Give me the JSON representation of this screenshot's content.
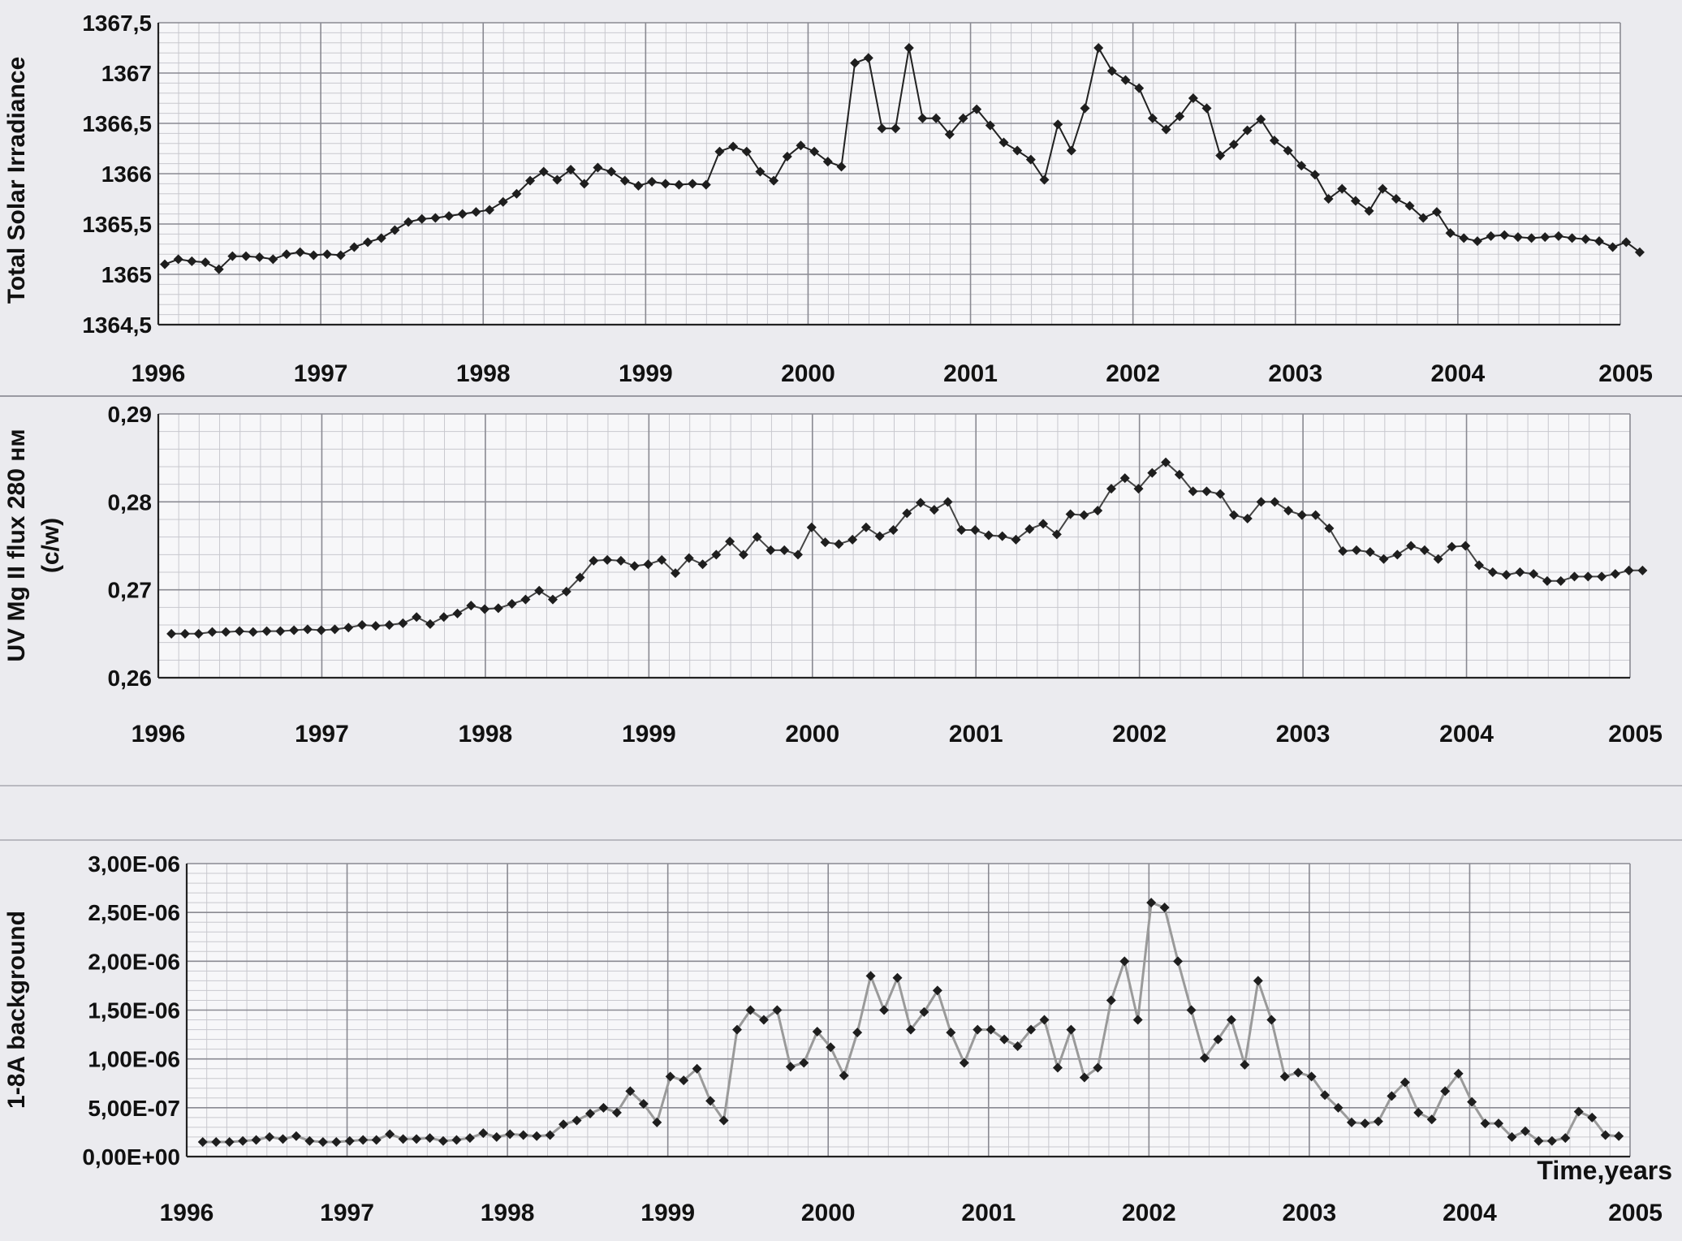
{
  "chart_data": [
    {
      "type": "line",
      "ylabel": "Total Solar Irradiance",
      "xlabel": "",
      "xlim": [
        1996,
        2005
      ],
      "ylim": [
        1364.5,
        1367.5
      ],
      "x_ticks": [
        "1996",
        "1997",
        "1998",
        "1999",
        "2000",
        "2001",
        "2002",
        "2003",
        "2004",
        "2005"
      ],
      "y_ticks": [
        "1364,5",
        "1365",
        "1365,5",
        "1366",
        "1366,5",
        "1367",
        "1367,5"
      ],
      "grid": true,
      "line_color": "#222222",
      "x_start": 1996.04,
      "x_step": 0.0833,
      "values": [
        1365.1,
        1365.15,
        1365.13,
        1365.12,
        1365.05,
        1365.18,
        1365.18,
        1365.17,
        1365.15,
        1365.2,
        1365.22,
        1365.19,
        1365.2,
        1365.19,
        1365.27,
        1365.32,
        1365.36,
        1365.44,
        1365.52,
        1365.55,
        1365.56,
        1365.58,
        1365.6,
        1365.62,
        1365.64,
        1365.72,
        1365.8,
        1365.93,
        1366.02,
        1365.94,
        1366.04,
        1365.9,
        1366.06,
        1366.02,
        1365.93,
        1365.88,
        1365.92,
        1365.9,
        1365.89,
        1365.9,
        1365.89,
        1366.22,
        1366.27,
        1366.22,
        1366.02,
        1365.93,
        1366.17,
        1366.28,
        1366.22,
        1366.12,
        1366.07,
        1367.1,
        1367.15,
        1366.45,
        1366.45,
        1367.25,
        1366.55,
        1366.55,
        1366.39,
        1366.55,
        1366.64,
        1366.48,
        1366.31,
        1366.23,
        1366.14,
        1365.94,
        1366.49,
        1366.23,
        1366.65,
        1367.25,
        1367.02,
        1366.93,
        1366.85,
        1366.55,
        1366.44,
        1366.57,
        1366.75,
        1366.65,
        1366.18,
        1366.29,
        1366.43,
        1366.54,
        1366.33,
        1366.23,
        1366.08,
        1365.99,
        1365.75,
        1365.85,
        1365.73,
        1365.63,
        1365.85,
        1365.75,
        1365.68,
        1365.56,
        1365.62,
        1365.41,
        1365.36,
        1365.33,
        1365.38,
        1365.39,
        1365.37,
        1365.36,
        1365.37,
        1365.38,
        1365.36,
        1365.35,
        1365.33,
        1365.27,
        1365.32,
        1365.22
      ]
    },
    {
      "type": "line",
      "ylabel": "UV Mg II flux 280 нм (c/w)",
      "xlabel": "",
      "xlim": [
        1996,
        2005
      ],
      "ylim": [
        0.26,
        0.29
      ],
      "x_ticks": [
        "1996",
        "1997",
        "1998",
        "1999",
        "2000",
        "2001",
        "2002",
        "2003",
        "2004",
        "2005"
      ],
      "y_ticks": [
        "0,26",
        "0,27",
        "0,28",
        "0,29"
      ],
      "grid": true,
      "line_color": "#444444",
      "x_start": 1996.08,
      "x_step": 0.0833,
      "values": [
        0.265,
        0.265,
        0.265,
        0.2652,
        0.2652,
        0.2653,
        0.2652,
        0.2653,
        0.2653,
        0.2654,
        0.2655,
        0.2654,
        0.2655,
        0.2657,
        0.266,
        0.2659,
        0.266,
        0.2662,
        0.2669,
        0.2661,
        0.2669,
        0.2673,
        0.2682,
        0.2678,
        0.2679,
        0.2684,
        0.2689,
        0.2699,
        0.2689,
        0.2698,
        0.2714,
        0.2733,
        0.2734,
        0.2733,
        0.2727,
        0.2729,
        0.2734,
        0.2719,
        0.2736,
        0.2729,
        0.274,
        0.2755,
        0.274,
        0.276,
        0.2745,
        0.2745,
        0.274,
        0.2771,
        0.2754,
        0.2752,
        0.2757,
        0.2771,
        0.2761,
        0.2768,
        0.2787,
        0.2799,
        0.2791,
        0.28,
        0.2768,
        0.2768,
        0.2762,
        0.2761,
        0.2757,
        0.2769,
        0.2775,
        0.2763,
        0.2786,
        0.2785,
        0.279,
        0.2815,
        0.2827,
        0.2815,
        0.2833,
        0.2845,
        0.2831,
        0.2812,
        0.2812,
        0.2809,
        0.2785,
        0.2781,
        0.28,
        0.28,
        0.279,
        0.2785,
        0.2785,
        0.277,
        0.2744,
        0.2745,
        0.2743,
        0.2735,
        0.274,
        0.275,
        0.2745,
        0.2735,
        0.2749,
        0.275,
        0.2728,
        0.272,
        0.2717,
        0.272,
        0.2718,
        0.271,
        0.271,
        0.2715,
        0.2715,
        0.2715,
        0.2718,
        0.2722,
        0.2722
      ]
    },
    {
      "type": "line",
      "ylabel": "1-8A  background",
      "xlabel": "Time,years",
      "xlim": [
        1996,
        2005
      ],
      "ylim": [
        0,
        3e-06
      ],
      "x_ticks": [
        "1996",
        "1997",
        "1998",
        "1999",
        "2000",
        "2001",
        "2002",
        "2003",
        "2004",
        "2005"
      ],
      "y_ticks": [
        "0,00E+00",
        "5,00E-07",
        "1,00E-06",
        "1,50E-06",
        "2,00E-06",
        "2,50E-06",
        "3,00E-06"
      ],
      "grid": true,
      "line_color": "#9a9a9a",
      "x_start": 1996.1,
      "x_step": 0.0833,
      "values": [
        1.5e-07,
        1.5e-07,
        1.5e-07,
        1.6e-07,
        1.7e-07,
        2e-07,
        1.8e-07,
        2.1e-07,
        1.6e-07,
        1.5e-07,
        1.5e-07,
        1.6e-07,
        1.7e-07,
        1.7e-07,
        2.3e-07,
        1.8e-07,
        1.8e-07,
        1.9e-07,
        1.6e-07,
        1.7e-07,
        1.9e-07,
        2.4e-07,
        2e-07,
        2.3e-07,
        2.2e-07,
        2.1e-07,
        2.2e-07,
        3.3e-07,
        3.7e-07,
        4.4e-07,
        5e-07,
        4.5e-07,
        6.7e-07,
        5.4e-07,
        3.5e-07,
        8.2e-07,
        7.8e-07,
        9e-07,
        5.7e-07,
        3.7e-07,
        1.3e-06,
        1.5e-06,
        1.4e-06,
        1.5e-06,
        9.2e-07,
        9.6e-07,
        1.28e-06,
        1.12e-06,
        8.3e-07,
        1.27e-06,
        1.85e-06,
        1.5e-06,
        1.83e-06,
        1.3e-06,
        1.48e-06,
        1.7e-06,
        1.27e-06,
        9.6e-07,
        1.3e-06,
        1.3e-06,
        1.2e-06,
        1.13e-06,
        1.3e-06,
        1.4e-06,
        9.1e-07,
        1.3e-06,
        8.1e-07,
        9.1e-07,
        1.6e-06,
        2e-06,
        1.4e-06,
        2.6e-06,
        2.55e-06,
        2e-06,
        1.5e-06,
        1.01e-06,
        1.2e-06,
        1.4e-06,
        9.4e-07,
        1.8e-06,
        1.4e-06,
        8.2e-07,
        8.6e-07,
        8.2e-07,
        6.3e-07,
        5e-07,
        3.5e-07,
        3.4e-07,
        3.6e-07,
        6.2e-07,
        7.6e-07,
        4.5e-07,
        3.8e-07,
        6.7e-07,
        8.5e-07,
        5.6e-07,
        3.4e-07,
        3.4e-07,
        2e-07,
        2.6e-07,
        1.6e-07,
        1.6e-07,
        1.9e-07,
        4.6e-07,
        4e-07,
        2.2e-07,
        2.1e-07
      ]
    }
  ]
}
